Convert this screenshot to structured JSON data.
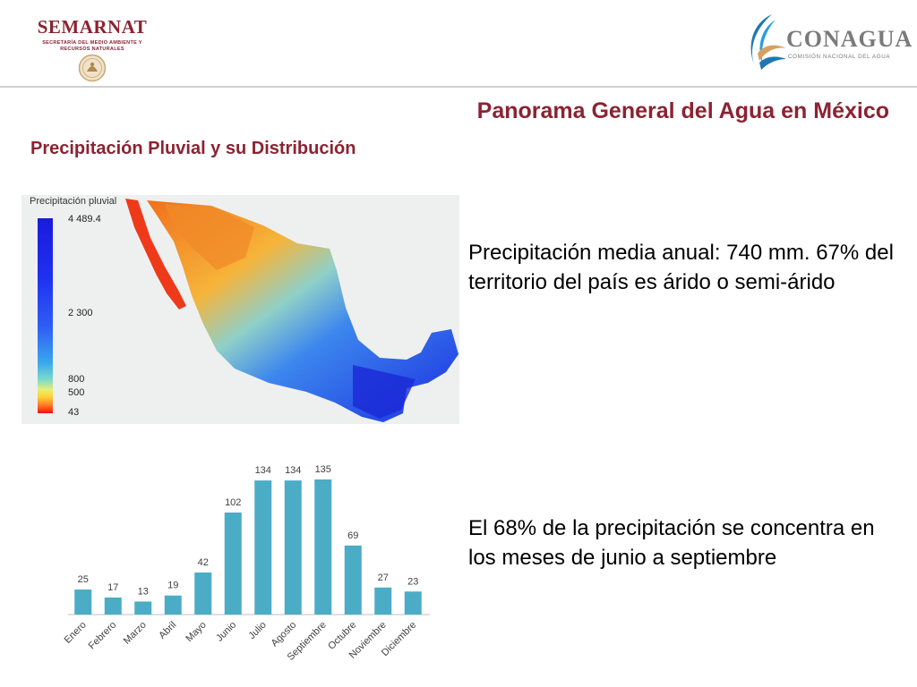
{
  "header": {
    "semarnat": {
      "name": "SEMARNAT",
      "subtitle_line1": "SECRETARÍA DEL MEDIO AMBIENTE Y",
      "subtitle_line2": "RECURSOS NATURALES"
    },
    "conagua": {
      "name": "CONAGUA",
      "subtitle": "COMISIÓN NACIONAL DEL AGUA"
    }
  },
  "title": "Panorama General del Agua en México",
  "subtitle": "Precipitación Pluvial y su Distribución",
  "map": {
    "legend_title": "Precipitación pluvial",
    "legend_labels": [
      "4 489.4",
      "2 300",
      "800",
      "500",
      "43"
    ]
  },
  "stats": {
    "annual": "Precipitación media anual: 740 mm. 67% del territorio del país es árido o semi-árido",
    "concentration": "El 68% de la precipitación se concentra en los meses de junio a septiembre"
  },
  "colors": {
    "brand": "#8b2332",
    "bar": "#4bacc6",
    "logo_gray": "#7a7a7a"
  },
  "chart_data": {
    "type": "bar",
    "categories": [
      "Enero",
      "Febrero",
      "Marzo",
      "Abril",
      "Mayo",
      "Junio",
      "Julio",
      "Agosto",
      "Septiembre",
      "Octubre",
      "Noviembre",
      "Diciembre"
    ],
    "values": [
      25,
      17,
      13,
      19,
      42,
      102,
      134,
      134,
      135,
      69,
      27,
      23
    ],
    "ylim": [
      0,
      140
    ],
    "grid": false,
    "legend": "none"
  }
}
